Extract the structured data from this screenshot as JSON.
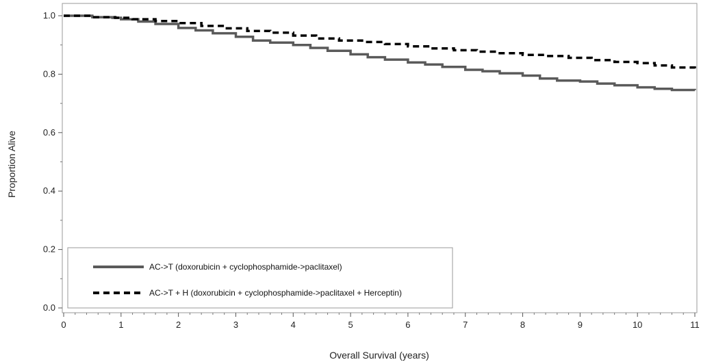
{
  "chart_data": {
    "type": "line",
    "xlabel": "Overall Survival (years)",
    "ylabel": "Proportion Alive",
    "xlim": [
      0,
      11
    ],
    "ylim": [
      0.0,
      1.0
    ],
    "x_ticks": [
      "0",
      "1",
      "2",
      "3",
      "4",
      "5",
      "6",
      "7",
      "8",
      "9",
      "10",
      "11"
    ],
    "y_ticks": [
      "0.0",
      "0.2",
      "0.4",
      "0.6",
      "0.8",
      "1.0"
    ],
    "grid": false,
    "legend_position": "bottom-left",
    "series": [
      {
        "name": "AC->T (doxorubicin + cyclophosphamide->paclitaxel)",
        "style": "solid",
        "color": "#5a5a5a",
        "points": [
          [
            0,
            1.0
          ],
          [
            0.5,
            0.995
          ],
          [
            0.85,
            0.993
          ],
          [
            1.0,
            0.988
          ],
          [
            1.3,
            0.98
          ],
          [
            1.6,
            0.972
          ],
          [
            2.0,
            0.958
          ],
          [
            2.3,
            0.95
          ],
          [
            2.6,
            0.94
          ],
          [
            3.0,
            0.928
          ],
          [
            3.3,
            0.915
          ],
          [
            3.6,
            0.908
          ],
          [
            4.0,
            0.9
          ],
          [
            4.3,
            0.89
          ],
          [
            4.6,
            0.88
          ],
          [
            5.0,
            0.868
          ],
          [
            5.3,
            0.858
          ],
          [
            5.6,
            0.85
          ],
          [
            6.0,
            0.84
          ],
          [
            6.3,
            0.833
          ],
          [
            6.6,
            0.825
          ],
          [
            7.0,
            0.815
          ],
          [
            7.3,
            0.81
          ],
          [
            7.6,
            0.803
          ],
          [
            8.0,
            0.795
          ],
          [
            8.3,
            0.785
          ],
          [
            8.6,
            0.778
          ],
          [
            9.0,
            0.775
          ],
          [
            9.3,
            0.768
          ],
          [
            9.6,
            0.762
          ],
          [
            10.0,
            0.755
          ],
          [
            10.3,
            0.75
          ],
          [
            10.6,
            0.746
          ],
          [
            11.0,
            0.745
          ]
        ]
      },
      {
        "name": "AC->T + H (doxorubicin + cyclophosphamide->paclitaxel + Herceptin)",
        "style": "dashed",
        "color": "#000000",
        "points": [
          [
            0,
            1.0
          ],
          [
            0.5,
            0.995
          ],
          [
            0.9,
            0.993
          ],
          [
            1.2,
            0.988
          ],
          [
            1.6,
            0.982
          ],
          [
            2.0,
            0.975
          ],
          [
            2.4,
            0.965
          ],
          [
            2.8,
            0.957
          ],
          [
            3.2,
            0.948
          ],
          [
            3.6,
            0.942
          ],
          [
            4.0,
            0.932
          ],
          [
            4.4,
            0.922
          ],
          [
            4.8,
            0.915
          ],
          [
            5.2,
            0.91
          ],
          [
            5.6,
            0.903
          ],
          [
            6.0,
            0.895
          ],
          [
            6.4,
            0.888
          ],
          [
            6.8,
            0.882
          ],
          [
            7.2,
            0.877
          ],
          [
            7.6,
            0.872
          ],
          [
            8.0,
            0.866
          ],
          [
            8.4,
            0.862
          ],
          [
            8.8,
            0.856
          ],
          [
            9.2,
            0.848
          ],
          [
            9.6,
            0.842
          ],
          [
            10.0,
            0.838
          ],
          [
            10.3,
            0.83
          ],
          [
            10.6,
            0.823
          ],
          [
            11.0,
            0.818
          ]
        ]
      }
    ]
  }
}
